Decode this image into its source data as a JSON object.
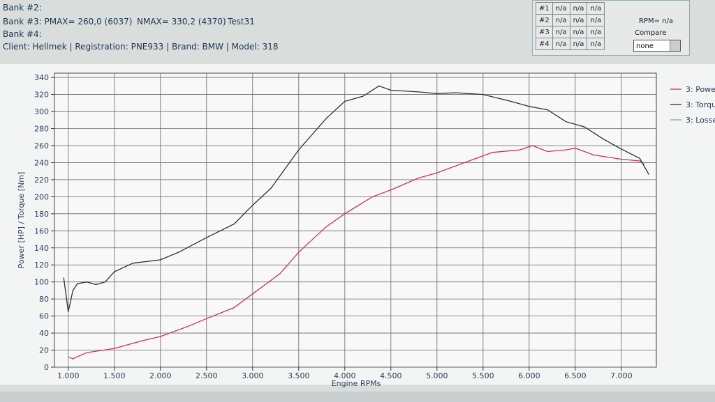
{
  "header": {
    "bank2": "Bank #2:",
    "bank3": "Bank #3: PMAX= 260,0 (6037)",
    "nmax": "NMAX= 330,2 (4370)",
    "test": "Test31",
    "bank4": "Bank #4:",
    "client": "Client: Hellmek | Registration: PNE933 | Brand: BMW | Model: 318"
  },
  "compare_table": {
    "rows": [
      [
        "#1",
        "n/a",
        "n/a",
        "n/a"
      ],
      [
        "#2",
        "n/a",
        "n/a",
        "n/a"
      ],
      [
        "#3",
        "n/a",
        "n/a",
        "n/a"
      ],
      [
        "#4",
        "n/a",
        "n/a",
        "n/a"
      ]
    ],
    "rpm": "RPM= n/a",
    "compare": "Compare",
    "selected": "none"
  },
  "chart_data": {
    "type": "line",
    "x_label": "Engine RPMs",
    "y_label": "Power [HP] / Torque [Nm]",
    "xlim": [
      850,
      7380
    ],
    "ylim": [
      0,
      345
    ],
    "grid": true,
    "xticks": [
      {
        "value": 1000,
        "label": "1.000"
      },
      {
        "value": 1500,
        "label": "1.500"
      },
      {
        "value": 2000,
        "label": "2.000"
      },
      {
        "value": 2500,
        "label": "2.500"
      },
      {
        "value": 3000,
        "label": "3.000"
      },
      {
        "value": 3500,
        "label": "3.500"
      },
      {
        "value": 4000,
        "label": "4.000"
      },
      {
        "value": 4500,
        "label": "4.500"
      },
      {
        "value": 5000,
        "label": "5.000"
      },
      {
        "value": 5500,
        "label": "5.500"
      },
      {
        "value": 6000,
        "label": "6.000"
      },
      {
        "value": 6500,
        "label": "6.500"
      },
      {
        "value": 7000,
        "label": "7.000"
      }
    ],
    "yticks": [
      0,
      20,
      40,
      60,
      80,
      100,
      120,
      140,
      160,
      180,
      200,
      220,
      240,
      260,
      280,
      300,
      320,
      340
    ],
    "series": [
      {
        "name": "3: Powe",
        "color": "#d0305a",
        "x": [
          1000,
          1050,
          1200,
          1500,
          1800,
          2000,
          2300,
          2500,
          2800,
          3000,
          3300,
          3500,
          3800,
          4000,
          4300,
          4500,
          4800,
          5000,
          5300,
          5600,
          5900,
          6037,
          6200,
          6400,
          6500,
          6700,
          7000,
          7200,
          7250
        ],
        "values": [
          12,
          10,
          17,
          22,
          31,
          36,
          48,
          57,
          70,
          86,
          110,
          135,
          165,
          180,
          200,
          208,
          222,
          228,
          240,
          252,
          255,
          260,
          253,
          255,
          257,
          249,
          244,
          242,
          238
        ]
      },
      {
        "name": "3: Torqu",
        "color": "#2a2f3a",
        "x": [
          950,
          1000,
          1050,
          1100,
          1200,
          1300,
          1400,
          1500,
          1700,
          2000,
          2200,
          2500,
          2800,
          3000,
          3200,
          3500,
          3800,
          4000,
          4200,
          4370,
          4500,
          4800,
          5000,
          5200,
          5500,
          5800,
          6000,
          6200,
          6400,
          6600,
          6800,
          7000,
          7200,
          7300
        ],
        "values": [
          105,
          65,
          90,
          98,
          100,
          97,
          100,
          112,
          122,
          126,
          135,
          152,
          168,
          190,
          210,
          255,
          292,
          312,
          318,
          330,
          325,
          323,
          321,
          322,
          320,
          312,
          306,
          302,
          288,
          282,
          268,
          256,
          245,
          226
        ]
      },
      {
        "name": "3: Losse",
        "color": "#9aa3a0",
        "x": [],
        "values": []
      }
    ]
  }
}
